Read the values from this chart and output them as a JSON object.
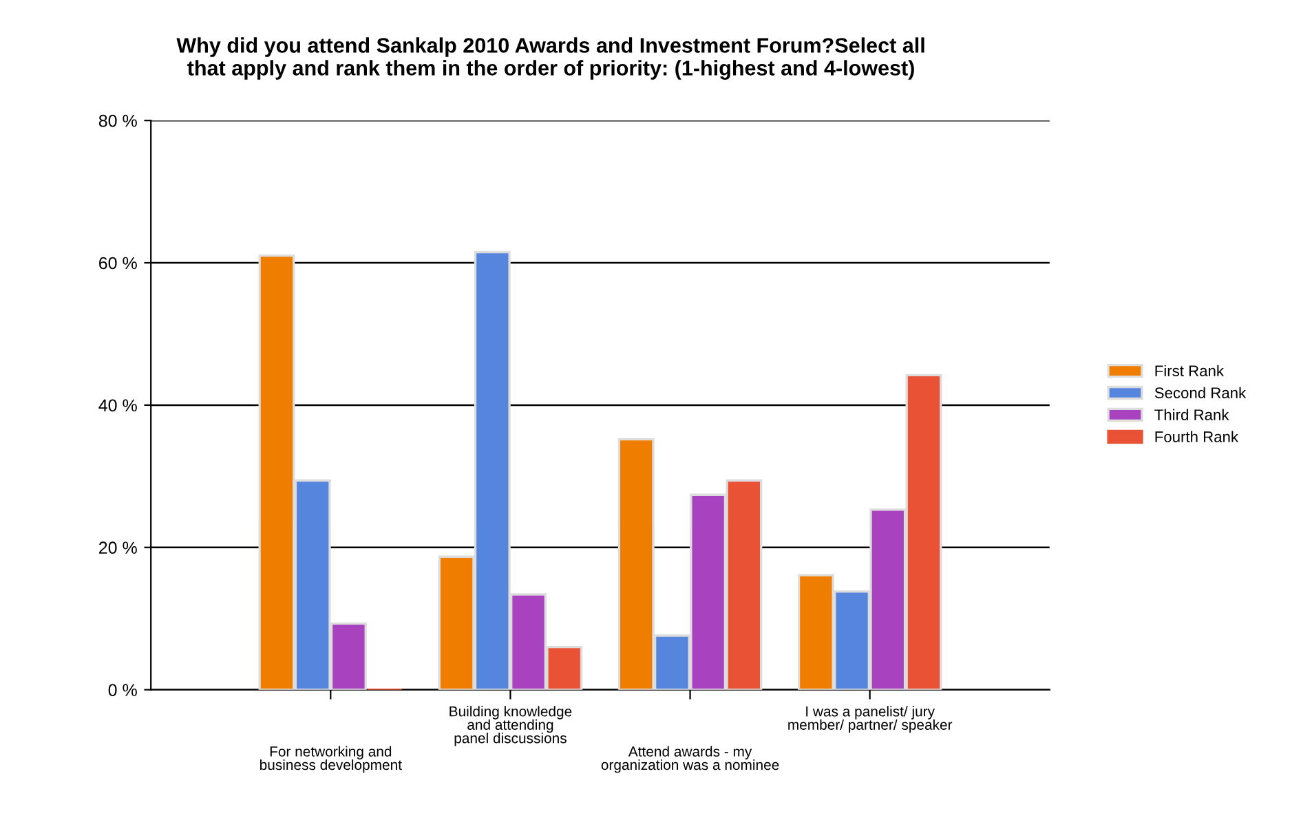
{
  "chart_data": {
    "type": "bar",
    "title": "Why did you attend Sankalp 2010 Awards and Investment Forum?Select all\nthat apply and rank them in the order of priority: (1-highest and 4-lowest)",
    "categories": [
      "For networking and\nbusiness development",
      "Building knowledge\nand attending\npanel discussions",
      "Attend awards - my\norganization was a nominee",
      "I was a panelist/ jury\nmember/ partner/ speaker"
    ],
    "series": [
      {
        "name": "First Rank",
        "color": "#ee7d00",
        "values": [
          61,
          18.7,
          35.2,
          16.1
        ]
      },
      {
        "name": "Second Rank",
        "color": "#5585dc",
        "values": [
          29.4,
          61.5,
          7.6,
          13.8
        ]
      },
      {
        "name": "Third Rank",
        "color": "#a942bf",
        "values": [
          9.3,
          13.4,
          27.4,
          25.3
        ]
      },
      {
        "name": "Fourth Rank",
        "color": "#ea5236",
        "values": [
          0,
          6,
          29.4,
          44.2
        ]
      }
    ],
    "ylim": [
      0,
      80
    ],
    "yticks": [
      {
        "value": 0,
        "label": "0 %"
      },
      {
        "value": 20,
        "label": "20 %"
      },
      {
        "value": 40,
        "label": "40 %"
      },
      {
        "value": 60,
        "label": "60 %"
      },
      {
        "value": 80,
        "label": "80 %"
      }
    ],
    "grid": "y",
    "legend": "right"
  }
}
